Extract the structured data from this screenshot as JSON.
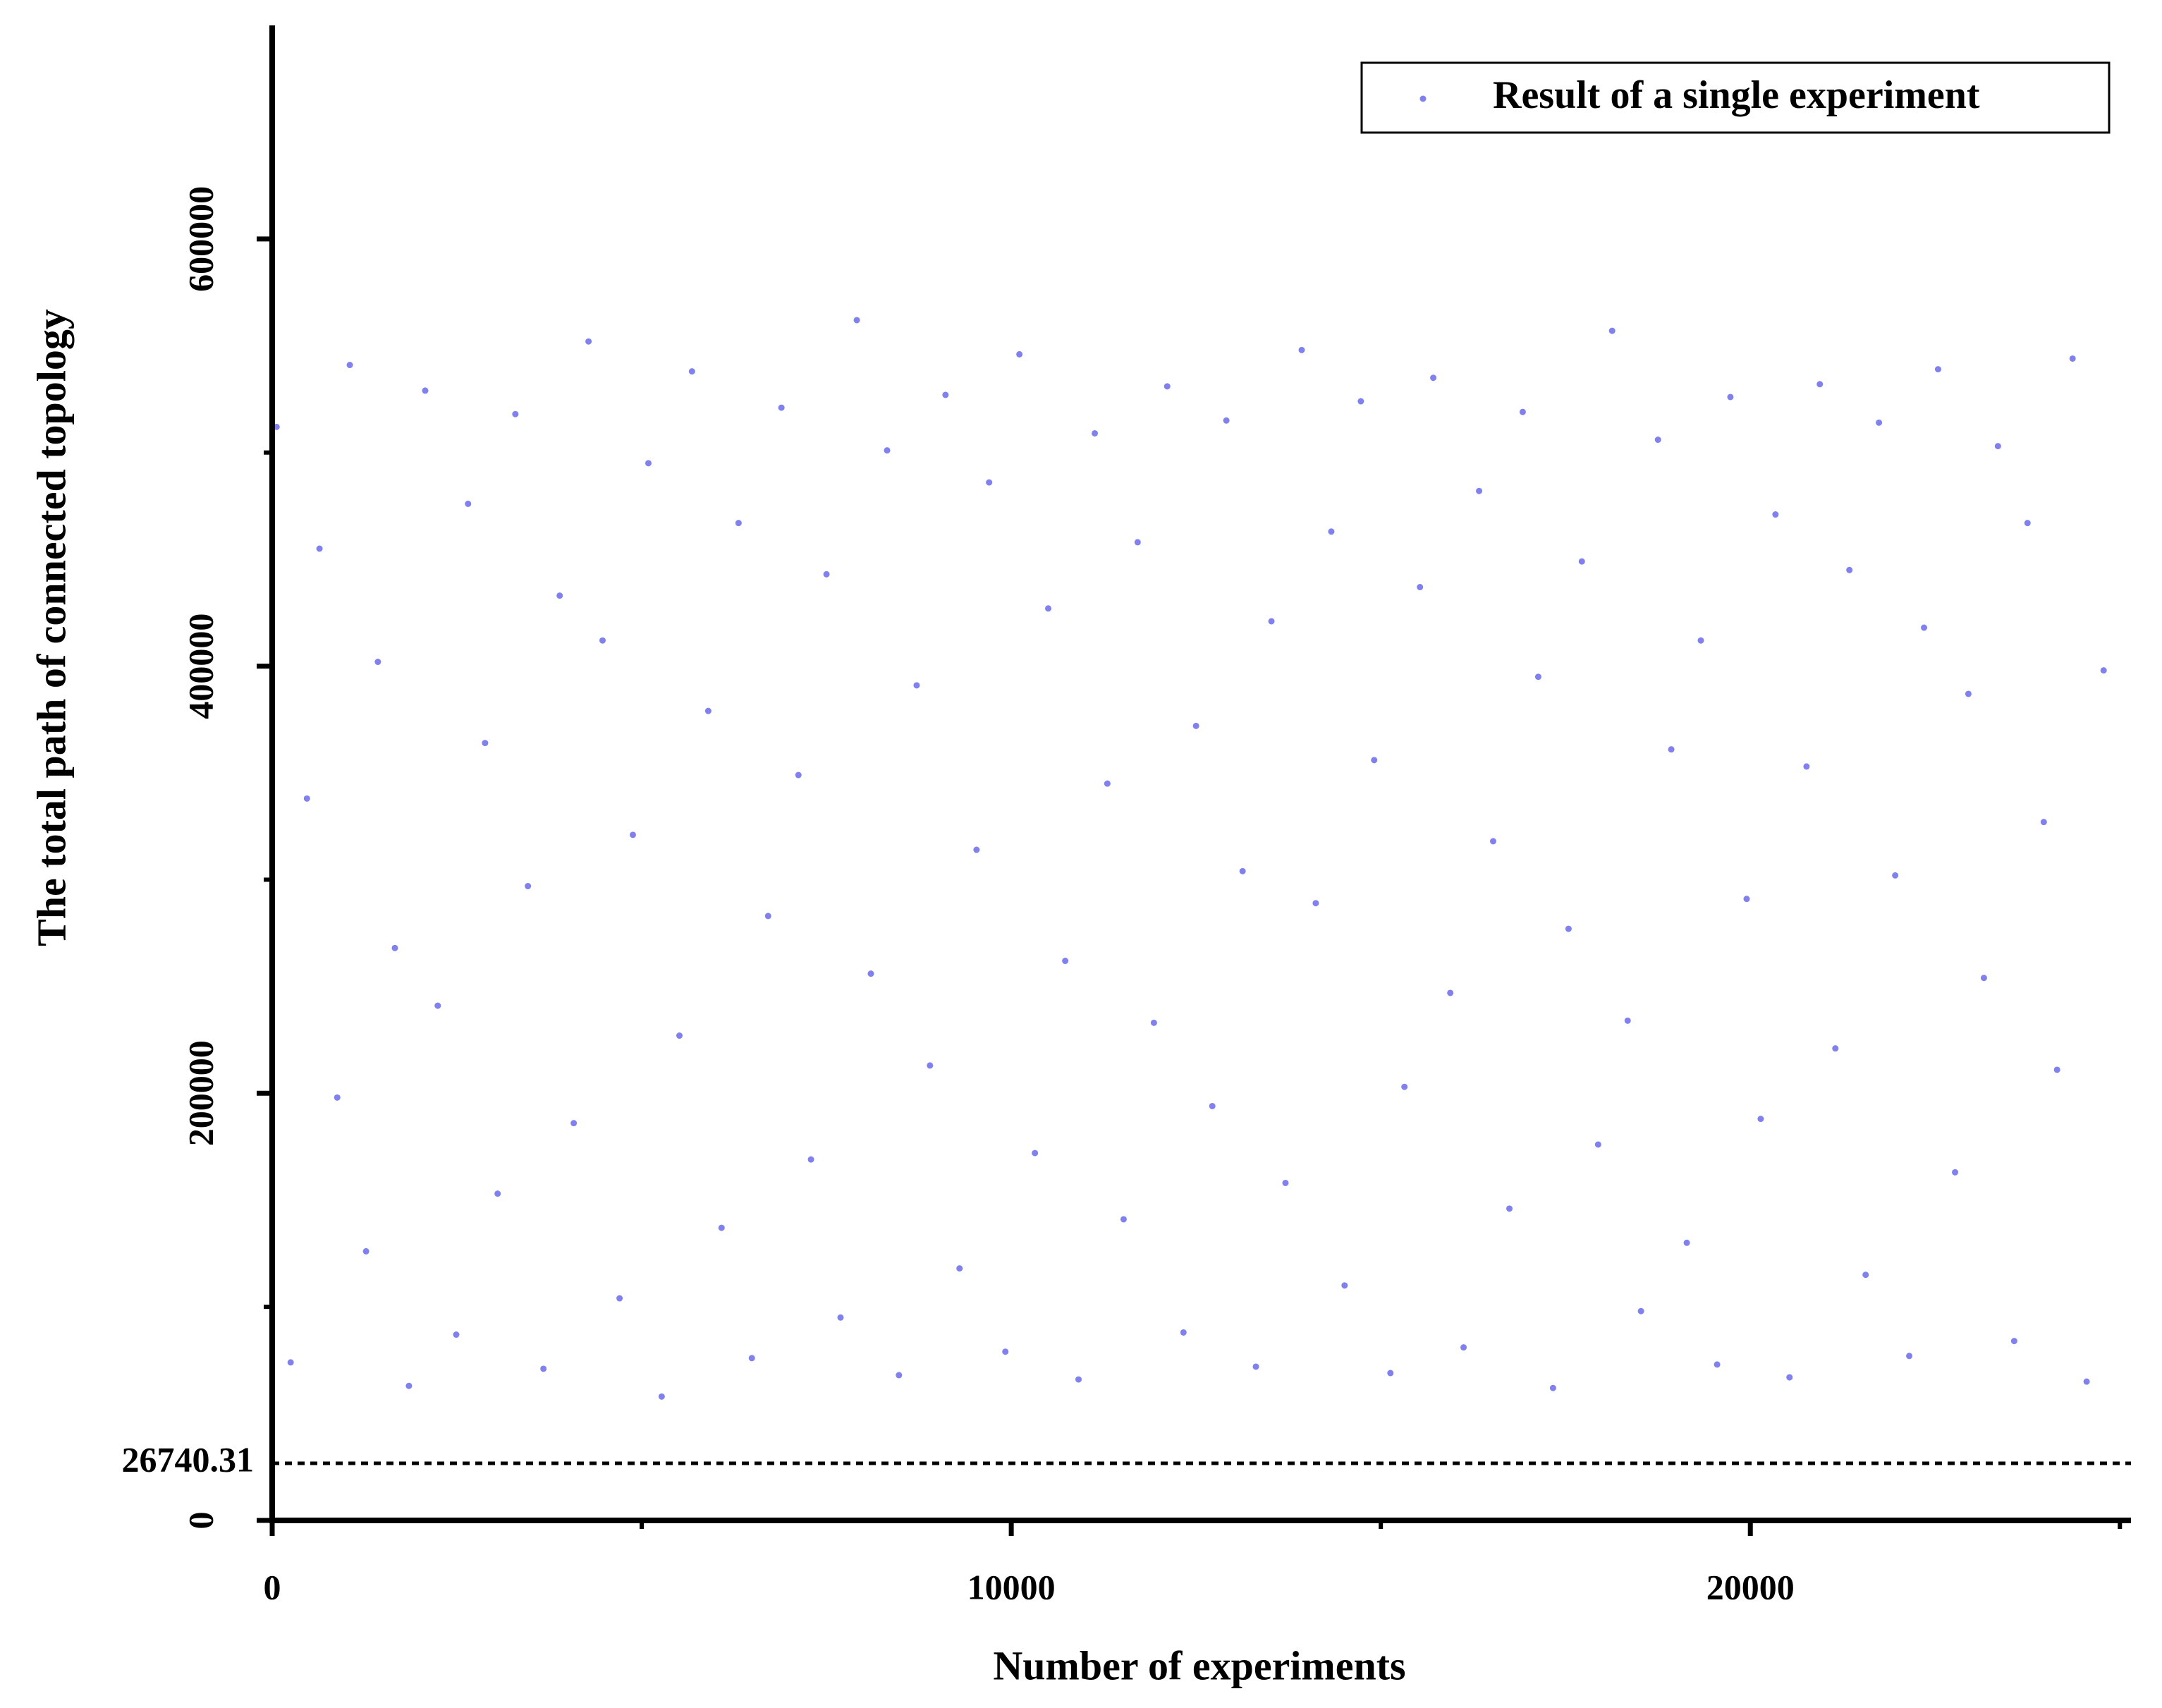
{
  "chart_data": {
    "type": "scatter",
    "x_label": "Number of experiments",
    "y_label": "The total path of connected topology",
    "legend": "top-right",
    "series": [
      {
        "name": "Result of a single experiment",
        "color": "#4a4ae8",
        "x": [
          60,
          250,
          470,
          640,
          880,
          1050,
          1270,
          1430,
          1660,
          1850,
          2070,
          2240,
          2490,
          2650,
          2880,
          3050,
          3290,
          3460,
          3670,
          3890,
          4080,
          4280,
          4470,
          4700,
          4880,
          5090,
          5270,
          5510,
          5680,
          5900,
          6080,
          6310,
          6490,
          6710,
          6890,
          7120,
          7290,
          7500,
          7690,
          7910,
          8100,
          8320,
          8480,
          8720,
          8900,
          9110,
          9300,
          9530,
          9700,
          9920,
          10110,
          10320,
          10500,
          10730,
          10910,
          11130,
          11300,
          11520,
          11710,
          11930,
          12110,
          12330,
          12500,
          12720,
          12910,
          13130,
          13310,
          13520,
          13710,
          13930,
          14120,
          14330,
          14510,
          14730,
          14910,
          15130,
          15320,
          15530,
          15710,
          15940,
          16120,
          16330,
          16520,
          16740,
          16920,
          17130,
          17330,
          17540,
          17720,
          17940,
          18130,
          18340,
          18520,
          18750,
          18930,
          19140,
          19330,
          19550,
          19730,
          19950,
          20140,
          20340,
          20530,
          20760,
          20940,
          21150,
          21340,
          21560,
          21740,
          21960,
          22150,
          22350,
          22540,
          22770,
          22950,
          23160,
          23350,
          23570,
          23750,
          23970,
          24150,
          24360,
          24550,
          24780
        ],
        "values": [
          512000,
          74000,
          338000,
          455000,
          198000,
          541000,
          126000,
          402000,
          268000,
          63000,
          529000,
          241000,
          87000,
          476000,
          364000,
          153000,
          518000,
          297000,
          71000,
          433000,
          186000,
          552000,
          412000,
          104000,
          321000,
          495000,
          58000,
          227000,
          538000,
          379000,
          137000,
          467000,
          76000,
          283000,
          521000,
          349000,
          169000,
          443000,
          95000,
          562000,
          256000,
          501000,
          68000,
          391000,
          213000,
          527000,
          118000,
          314000,
          486000,
          79000,
          546000,
          172000,
          427000,
          262000,
          66000,
          509000,
          345000,
          141000,
          458000,
          233000,
          531000,
          88000,
          372000,
          194000,
          515000,
          304000,
          72000,
          421000,
          158000,
          548000,
          289000,
          463000,
          110000,
          524000,
          356000,
          69000,
          203000,
          437000,
          535000,
          247000,
          81000,
          482000,
          318000,
          146000,
          519000,
          395000,
          62000,
          277000,
          449000,
          176000,
          557000,
          234000,
          98000,
          506000,
          361000,
          130000,
          412000,
          73000,
          526000,
          291000,
          188000,
          471000,
          67000,
          353000,
          532000,
          221000,
          445000,
          115000,
          514000,
          302000,
          77000,
          418000,
          539000,
          163000,
          387000,
          254000,
          503000,
          84000,
          467000,
          327000,
          211000,
          544000,
          65000,
          398000
        ]
      }
    ],
    "reference_line": 26740.31,
    "xlim": [
      0,
      25150
    ],
    "xticks": [
      0,
      10000,
      20000
    ],
    "xminorticks": [
      5000,
      15000,
      25000
    ],
    "ylim": [
      0,
      700000
    ],
    "yticks": [
      0,
      200000,
      400000,
      600000
    ],
    "yminorticks": [
      100000,
      300000,
      500000
    ]
  }
}
